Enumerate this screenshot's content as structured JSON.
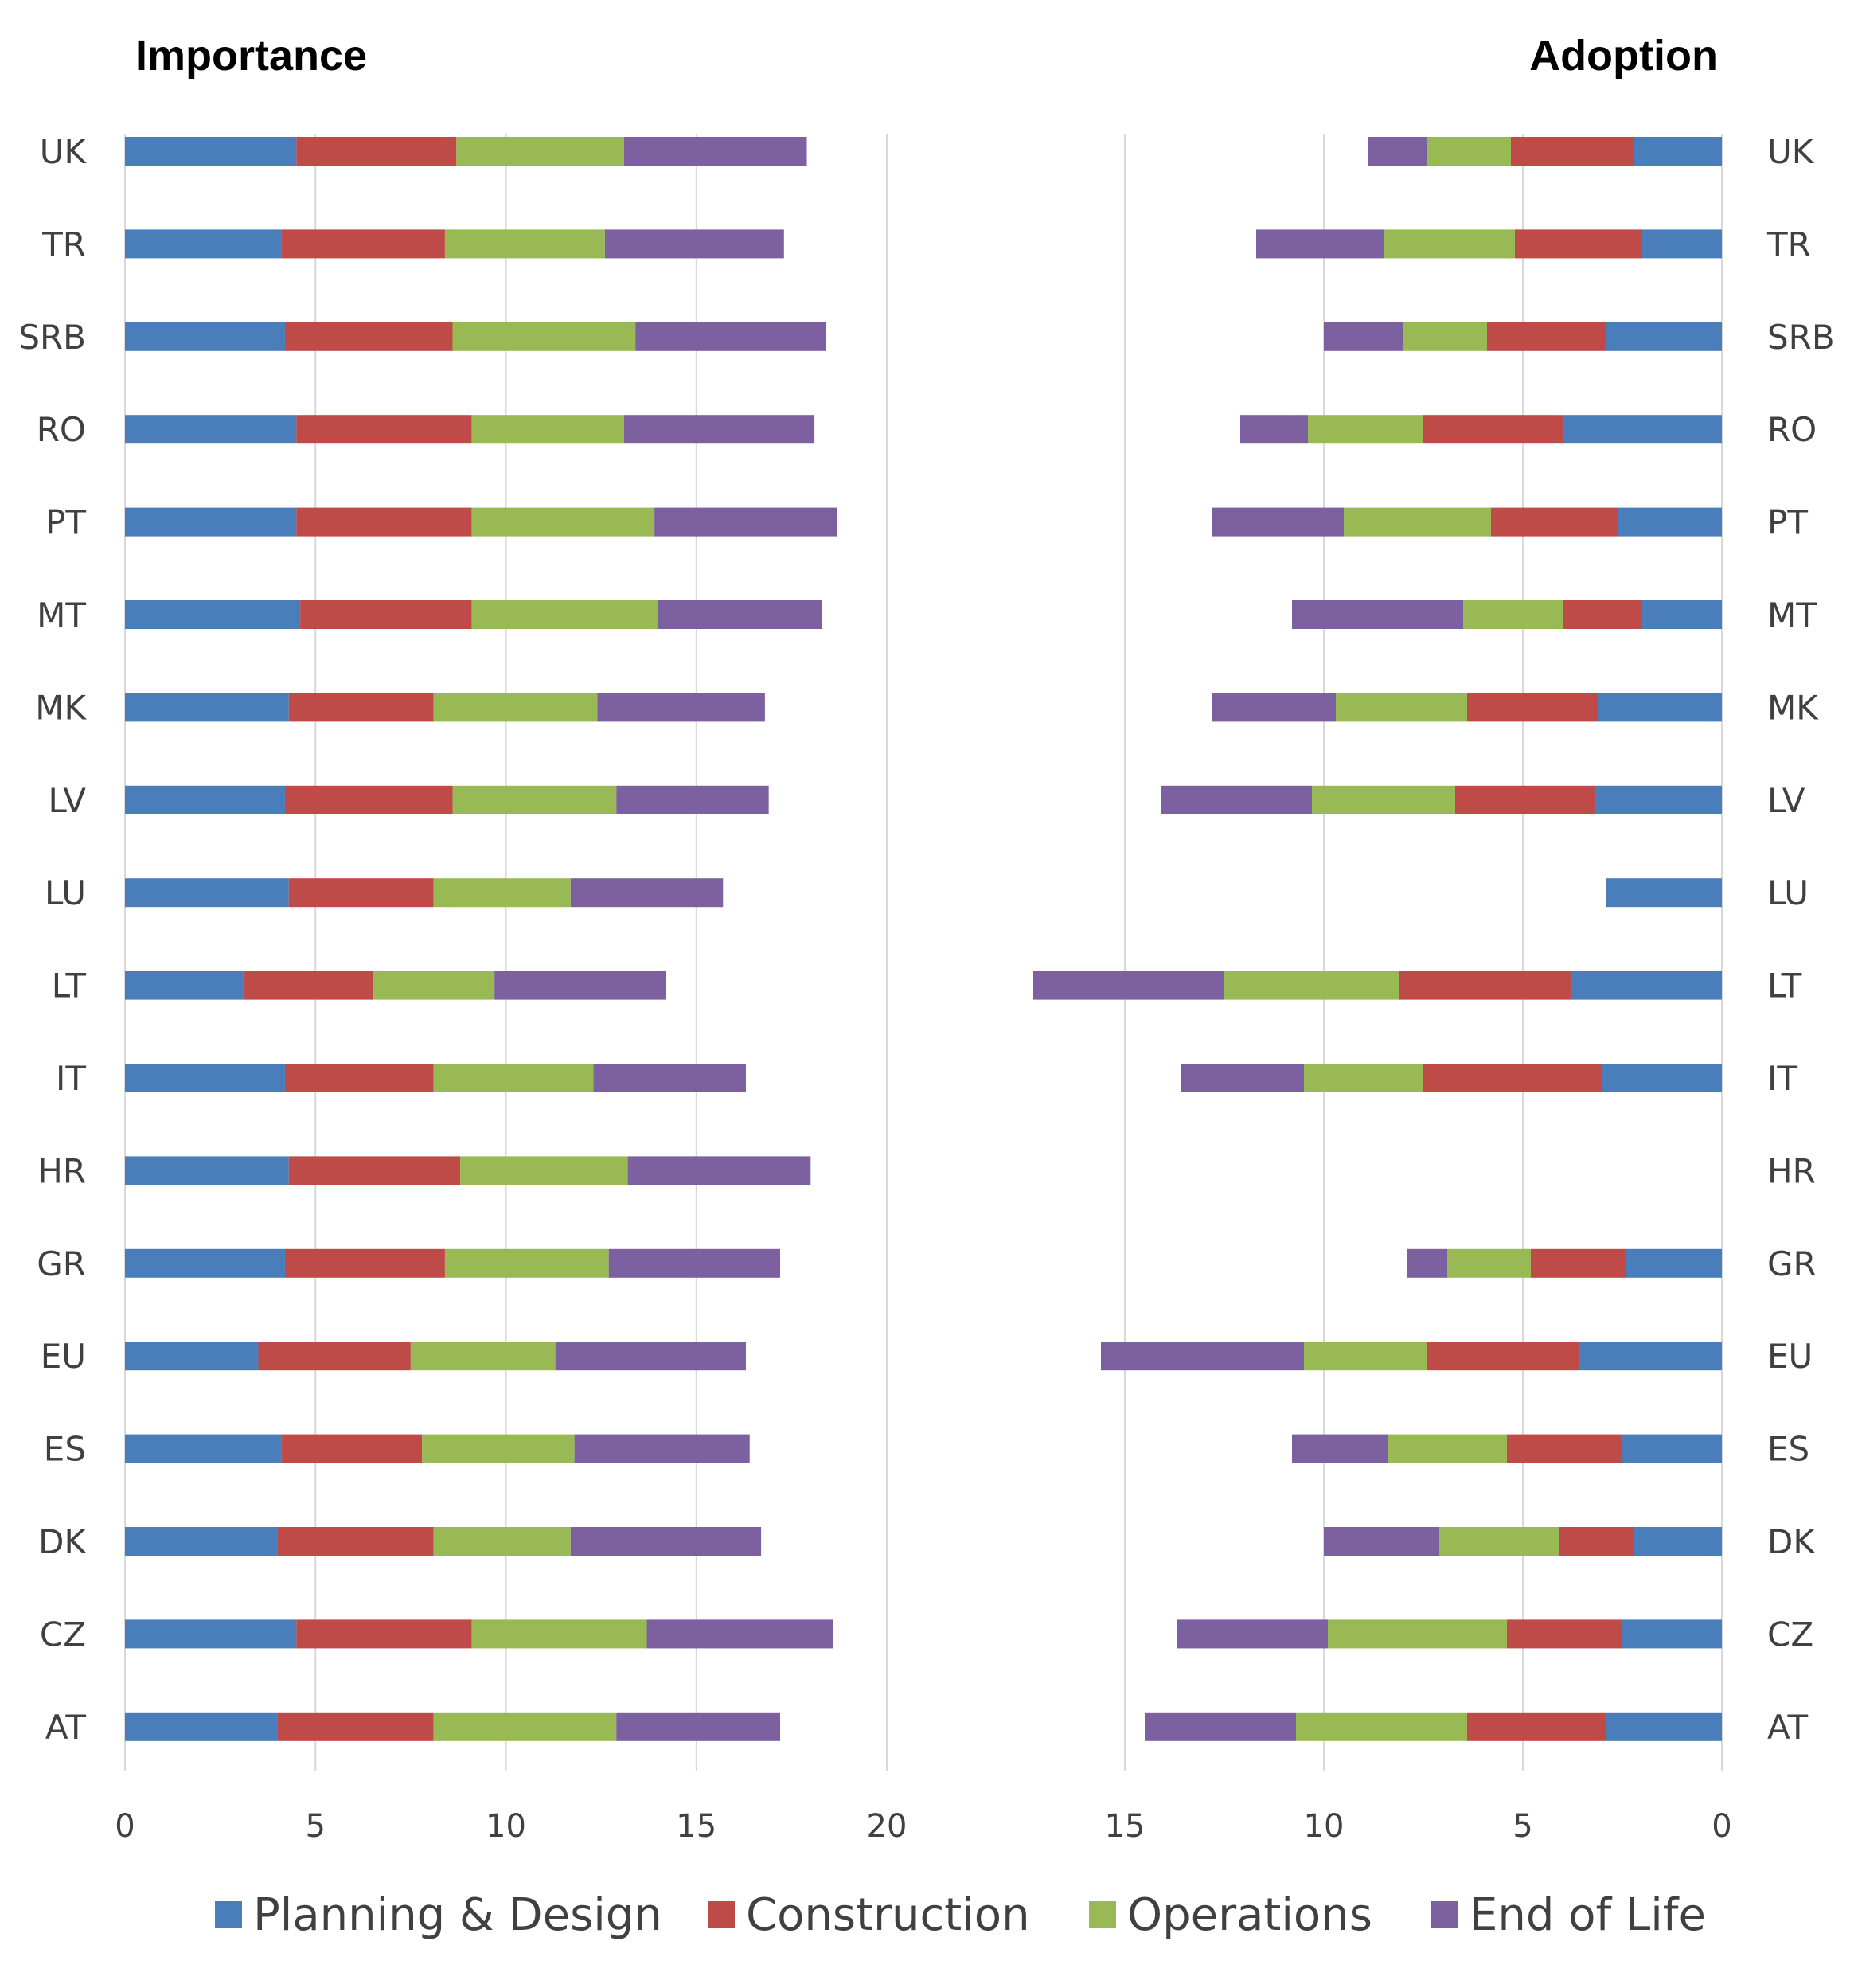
{
  "chart_data": [
    {
      "type": "bar",
      "orientation": "horizontal",
      "stacked": true,
      "title": "Importance",
      "categories": [
        "UK",
        "TR",
        "SRB",
        "RO",
        "PT",
        "MT",
        "MK",
        "LV",
        "LU",
        "LT",
        "IT",
        "HR",
        "GR",
        "EU",
        "ES",
        "DK",
        "CZ",
        "AT"
      ],
      "xlim": [
        0,
        20
      ],
      "xticks": [
        "0",
        "5",
        "10",
        "15",
        "20"
      ],
      "grid": true,
      "series": [
        {
          "name": "Planning & Design",
          "color": "#4A7EBB",
          "values": [
            4.5,
            4.1,
            4.2,
            4.5,
            4.5,
            4.6,
            4.3,
            4.2,
            4.3,
            3.1,
            4.2,
            4.3,
            4.2,
            3.5,
            4.1,
            4.0,
            4.5,
            4.0
          ]
        },
        {
          "name": "Construction",
          "color": "#BE4B48",
          "values": [
            4.2,
            4.3,
            4.4,
            4.6,
            4.6,
            4.5,
            3.8,
            4.4,
            3.8,
            3.4,
            3.9,
            4.5,
            4.2,
            4.0,
            3.7,
            4.1,
            4.6,
            4.1
          ]
        },
        {
          "name": "Operations",
          "color": "#98B954",
          "values": [
            4.4,
            4.2,
            4.8,
            4.0,
            4.8,
            4.9,
            4.3,
            4.3,
            3.6,
            3.2,
            4.2,
            4.4,
            4.3,
            3.8,
            4.0,
            3.6,
            4.6,
            4.8
          ]
        },
        {
          "name": "End of Life",
          "color": "#7D60A0",
          "values": [
            4.8,
            4.7,
            5.0,
            5.0,
            4.8,
            4.3,
            4.4,
            4.0,
            4.0,
            4.5,
            4.0,
            4.8,
            4.5,
            5.0,
            4.6,
            5.0,
            4.9,
            4.3
          ]
        }
      ]
    },
    {
      "type": "bar",
      "orientation": "horizontal",
      "stacked": true,
      "reversed_x": true,
      "title": "Adoption",
      "categories": [
        "UK",
        "TR",
        "SRB",
        "RO",
        "PT",
        "MT",
        "MK",
        "LV",
        "LU",
        "LT",
        "IT",
        "HR",
        "GR",
        "EU",
        "ES",
        "DK",
        "CZ",
        "AT"
      ],
      "xlim": [
        0,
        17
      ],
      "xticks": [
        "15",
        "10",
        "5",
        "0"
      ],
      "grid": true,
      "series": [
        {
          "name": "Planning & Design",
          "color": "#4A7EBB",
          "values": [
            2.2,
            2.0,
            2.9,
            4.0,
            2.6,
            2.0,
            3.1,
            3.2,
            2.9,
            3.8,
            3.0,
            0,
            2.4,
            3.6,
            2.5,
            2.2,
            2.5,
            2.9
          ]
        },
        {
          "name": "Construction",
          "color": "#BE4B48",
          "values": [
            3.1,
            3.2,
            3.0,
            3.5,
            3.2,
            2.0,
            3.3,
            3.5,
            0,
            4.3,
            4.5,
            0,
            2.4,
            3.8,
            2.9,
            1.9,
            2.9,
            3.5
          ]
        },
        {
          "name": "Operations",
          "color": "#98B954",
          "values": [
            2.1,
            3.3,
            2.1,
            2.9,
            3.7,
            2.5,
            3.3,
            3.6,
            0,
            4.4,
            3.0,
            0,
            2.1,
            3.1,
            3.0,
            3.0,
            4.5,
            4.3
          ]
        },
        {
          "name": "End of Life",
          "color": "#7D60A0",
          "values": [
            1.5,
            3.2,
            2.0,
            1.7,
            3.3,
            4.3,
            3.1,
            3.8,
            0,
            4.8,
            3.1,
            0,
            1.0,
            5.1,
            2.4,
            2.9,
            3.8,
            3.8
          ]
        }
      ]
    }
  ],
  "legend": {
    "placement": "bottom",
    "items": [
      {
        "label": "Planning & Design",
        "color": "#4A7EBB"
      },
      {
        "label": "Construction",
        "color": "#BE4B48"
      },
      {
        "label": "Operations",
        "color": "#98B954"
      },
      {
        "label": "End of Life",
        "color": "#7D60A0"
      }
    ]
  }
}
